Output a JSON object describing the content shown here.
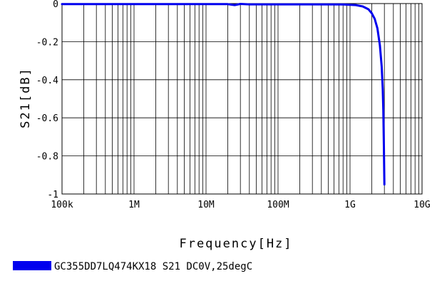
{
  "chart_data": {
    "type": "line",
    "title": "",
    "xlabel": "Frequency[Hz]",
    "ylabel": "S21[dB]",
    "xscale": "log",
    "xlim": [
      100000,
      10000000000
    ],
    "ylim": [
      -1,
      0
    ],
    "grid": true,
    "legend_position": "bottom-left",
    "x_ticks": [
      {
        "value": 100000,
        "label": "100k"
      },
      {
        "value": 1000000,
        "label": "1M"
      },
      {
        "value": 10000000,
        "label": "10M"
      },
      {
        "value": 100000000,
        "label": "100M"
      },
      {
        "value": 1000000000,
        "label": "1G"
      },
      {
        "value": 10000000000,
        "label": "10G"
      }
    ],
    "y_ticks": [
      {
        "value": 0,
        "label": "0"
      },
      {
        "value": -0.2,
        "label": "-0.2"
      },
      {
        "value": -0.4,
        "label": "-0.4"
      },
      {
        "value": -0.6,
        "label": "-0.6"
      },
      {
        "value": -0.8,
        "label": "-0.8"
      },
      {
        "value": -1,
        "label": "-1"
      }
    ],
    "series": [
      {
        "name": "GC355DD7LQ474KX18 S21 DC0V,25degC",
        "color": "#0000ee",
        "x": [
          100000,
          1000000,
          10000000,
          20000000,
          25000000,
          30000000,
          40000000,
          100000000,
          300000000,
          800000000,
          1200000000,
          1500000000,
          1800000000,
          2000000000,
          2200000000,
          2400000000,
          2600000000,
          2750000000,
          2850000000,
          2900000000,
          2950000000,
          3000000000
        ],
        "y": [
          -0.003,
          -0.003,
          -0.003,
          -0.003,
          -0.008,
          -0.002,
          -0.004,
          -0.004,
          -0.004,
          -0.005,
          -0.008,
          -0.015,
          -0.03,
          -0.05,
          -0.08,
          -0.13,
          -0.22,
          -0.33,
          -0.45,
          -0.56,
          -0.75,
          -0.95
        ]
      }
    ]
  }
}
